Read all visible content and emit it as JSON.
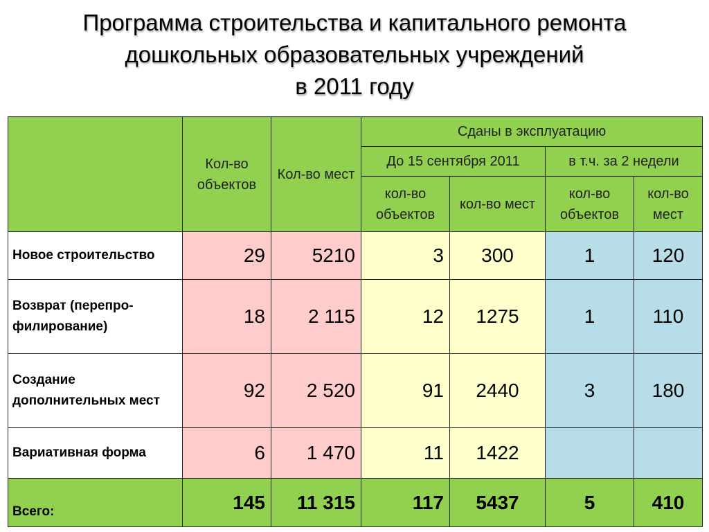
{
  "title": {
    "line1": "Программа строительства и капитального ремонта",
    "line2": "дошкольных образовательных учреждений",
    "line3": "в 2011 году"
  },
  "header": {
    "objects_count": "Кол-во объектов",
    "places_count": "Кол-во мест",
    "commissioned": "Сданы в эксплуатацию",
    "until_sept": "До 15 сентября 2011",
    "last_two_weeks": "в т.ч. за 2 недели",
    "sub_objects": "кол-во объектов",
    "sub_places": "кол-во мест"
  },
  "rows": [
    {
      "label": "Новое строительство",
      "objects": "29",
      "places": "5210",
      "sept_objects": "3",
      "sept_places": "300",
      "weeks_objects": "1",
      "weeks_places": "120"
    },
    {
      "label": "Возврат (перепро-филирование)",
      "objects": "18",
      "places": "2 115",
      "sept_objects": "12",
      "sept_places": "1275",
      "weeks_objects": "1",
      "weeks_places": "110"
    },
    {
      "label": "Создание дополнительных мест",
      "objects": "92",
      "places": "2 520",
      "sept_objects": "91",
      "sept_places": "2440",
      "weeks_objects": "3",
      "weeks_places": "180"
    },
    {
      "label": "Вариативная форма",
      "objects": "6",
      "places": "1 470",
      "sept_objects": "11",
      "sept_places": "1422",
      "weeks_objects": "",
      "weeks_places": ""
    }
  ],
  "total": {
    "label": "Всего:",
    "objects": "145",
    "places": "11 315",
    "sept_objects": "117",
    "sept_places": "5437",
    "weeks_objects": "5",
    "weeks_places": "410"
  },
  "colors": {
    "header_green": "#92d050",
    "pink": "#ffcccc",
    "yellow": "#ffffcc",
    "blue": "#b7dde8"
  }
}
